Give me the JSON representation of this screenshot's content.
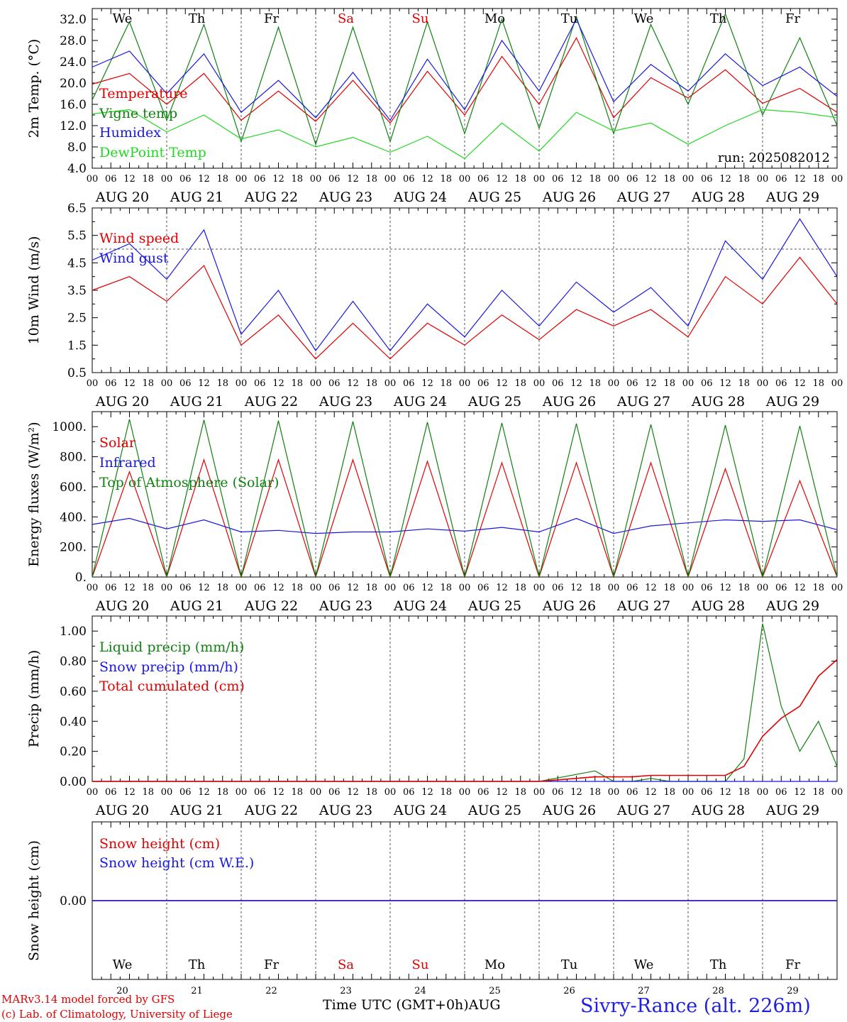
{
  "run_label": "run: 2025082012",
  "credit_line1": "MARv3.14 model forced by GFS",
  "credit_line2": "(c) Lab. of Climatology, University of Liege",
  "x_title": "Time UTC (GMT+0h)",
  "month_label": "AUG",
  "location": "Sivry-Rance (alt. 226m)",
  "day_names": [
    "We",
    "Th",
    "Fr",
    "Sa",
    "Su",
    "Mo",
    "Tu",
    "We",
    "Th",
    "Fr"
  ],
  "weekend_days": [
    3,
    4
  ],
  "date_labels": [
    "AUG 20",
    "AUG 21",
    "AUG 22",
    "AUG 23",
    "AUG 24",
    "AUG 25",
    "AUG 26",
    "AUG 27",
    "AUG 28",
    "AUG 29"
  ],
  "day_numbers": [
    "20",
    "21",
    "22",
    "23",
    "24",
    "25",
    "26",
    "27",
    "28",
    "29"
  ],
  "hour_ticks": [
    "00",
    "06",
    "12",
    "18"
  ],
  "colors": {
    "red": "#e00000",
    "blue": "#1818e0",
    "green": "#108010",
    "lightgreen": "#20d820",
    "weekend": "#e00000",
    "location": "#2020e0"
  },
  "chart_data": [
    {
      "id": "temp",
      "type": "line",
      "ylabel": "2m Temp. (°C)",
      "ylim": [
        4,
        34
      ],
      "yticks": [
        "4.0",
        "8.0",
        "12.0",
        "16.0",
        "20.0",
        "24.0",
        "28.0",
        "32.0"
      ],
      "legend_position": "left",
      "x_hours": [
        0,
        12,
        24,
        36,
        48,
        60,
        72,
        84,
        96,
        108,
        120,
        132,
        144,
        156,
        168,
        180,
        192,
        204,
        216,
        228,
        240
      ],
      "series": [
        {
          "name": "Temperature",
          "color": "red",
          "values": [
            19.8,
            21.8,
            16.0,
            21.8,
            13.0,
            18.5,
            12.8,
            20.5,
            12.5,
            22.2,
            14.0,
            25.0,
            16.0,
            28.5,
            13.5,
            21.0,
            17.2,
            22.5,
            16.2,
            19.0,
            14.5
          ]
        },
        {
          "name": "Vigne temp",
          "color": "green",
          "values": [
            16.8,
            31.5,
            13.0,
            31.0,
            9.0,
            30.5,
            8.5,
            30.5,
            9.0,
            31.5,
            10.5,
            32.0,
            11.5,
            32.5,
            10.5,
            31.0,
            16.0,
            33.0,
            14.0,
            28.5,
            12.0
          ]
        },
        {
          "name": "Humidex",
          "color": "blue",
          "values": [
            23.0,
            26.0,
            18.0,
            25.5,
            14.5,
            20.5,
            13.5,
            22.0,
            13.0,
            24.5,
            15.0,
            28.0,
            18.5,
            32.0,
            16.5,
            23.5,
            18.5,
            25.5,
            19.5,
            23.0,
            17.5
          ]
        },
        {
          "name": "DewPoint Temp",
          "color": "lightgreen",
          "values": [
            14.2,
            15.0,
            10.8,
            14.0,
            9.5,
            11.2,
            8.0,
            9.8,
            7.0,
            10.0,
            5.8,
            12.5,
            7.2,
            14.5,
            11.0,
            12.5,
            8.5,
            12.0,
            15.0,
            14.5,
            13.5
          ]
        }
      ]
    },
    {
      "id": "wind",
      "type": "line",
      "ylabel": "10m Wind (m/s)",
      "ylim": [
        0.5,
        6.5
      ],
      "yticks": [
        "0.5",
        "1.5",
        "2.5",
        "3.5",
        "4.5",
        "5.5",
        "6.5"
      ],
      "reference_line": 5.0,
      "legend_position": "left",
      "x_hours": [
        0,
        12,
        24,
        36,
        48,
        60,
        72,
        84,
        96,
        108,
        120,
        132,
        144,
        156,
        168,
        180,
        192,
        204,
        216,
        228,
        240
      ],
      "series": [
        {
          "name": "Wind speed",
          "color": "red",
          "values": [
            3.5,
            4.0,
            3.1,
            4.4,
            1.5,
            2.6,
            1.0,
            2.3,
            1.0,
            2.3,
            1.5,
            2.6,
            1.7,
            2.8,
            2.2,
            2.8,
            1.8,
            4.0,
            3.0,
            4.7,
            3.0
          ]
        },
        {
          "name": "Wind gust",
          "color": "blue",
          "values": [
            4.6,
            5.2,
            3.9,
            5.7,
            1.9,
            3.5,
            1.3,
            3.1,
            1.3,
            3.0,
            1.8,
            3.5,
            2.2,
            3.8,
            2.7,
            3.6,
            2.2,
            5.3,
            3.9,
            6.1,
            4.0
          ]
        }
      ]
    },
    {
      "id": "energy",
      "type": "line",
      "ylabel": "Energy fluxes (W/m²)",
      "ylim": [
        0,
        1100
      ],
      "yticks": [
        "0.",
        "200.",
        "400.",
        "600.",
        "800.",
        "1000."
      ],
      "legend_position": "left",
      "x_hours": [
        0,
        12,
        24,
        36,
        48,
        60,
        72,
        84,
        96,
        108,
        120,
        132,
        144,
        156,
        168,
        180,
        192,
        204,
        216,
        228,
        240
      ],
      "series": [
        {
          "name": "Solar",
          "color": "red",
          "values": [
            0,
            700,
            0,
            780,
            0,
            780,
            0,
            780,
            0,
            770,
            0,
            760,
            0,
            760,
            0,
            760,
            0,
            720,
            0,
            640,
            0
          ]
        },
        {
          "name": "Infrared",
          "color": "blue",
          "values": [
            350,
            390,
            320,
            380,
            300,
            310,
            290,
            300,
            300,
            320,
            305,
            330,
            300,
            390,
            290,
            340,
            360,
            380,
            370,
            380,
            315
          ]
        },
        {
          "name": "Top of Atmosphere (Solar)",
          "color": "green",
          "values": [
            0,
            1050,
            0,
            1045,
            0,
            1040,
            0,
            1035,
            0,
            1030,
            0,
            1025,
            0,
            1020,
            0,
            1015,
            0,
            1010,
            0,
            1005,
            0
          ]
        }
      ]
    },
    {
      "id": "precip",
      "type": "line",
      "ylabel": "Precip (mm/h)",
      "ylim": [
        0,
        1.1
      ],
      "yticks": [
        "0.00",
        "0.20",
        "0.40",
        "0.60",
        "0.80",
        "1.00"
      ],
      "legend_position": "left",
      "x_hours": [
        0,
        36,
        72,
        108,
        144,
        162,
        168,
        174,
        180,
        186,
        192,
        204,
        210,
        216,
        222,
        228,
        234,
        240
      ],
      "series": [
        {
          "name": "Liquid precip (mm/h)",
          "color": "green",
          "values": [
            0,
            0,
            0,
            0,
            0,
            0.07,
            0,
            0,
            0.02,
            0,
            0,
            0,
            0.15,
            1.05,
            0.5,
            0.2,
            0.4,
            0.1
          ]
        },
        {
          "name": "Snow precip (mm/h)",
          "color": "blue",
          "values": [
            0,
            0,
            0,
            0,
            0,
            0,
            0,
            0,
            0,
            0,
            0,
            0,
            0,
            0,
            0,
            0,
            0,
            0
          ]
        },
        {
          "name": "Total cumulated (cm)",
          "color": "red",
          "values": [
            0,
            0,
            0,
            0,
            0,
            0.03,
            0.03,
            0.03,
            0.04,
            0.04,
            0.04,
            0.04,
            0.1,
            0.3,
            0.42,
            0.5,
            0.7,
            0.81
          ]
        }
      ]
    },
    {
      "id": "snow",
      "type": "line",
      "ylabel": "Snow height (cm)",
      "ylim": [
        -1,
        1
      ],
      "yticks": [
        "0.00"
      ],
      "legend_position": "left",
      "x_hours": [
        0,
        240
      ],
      "series": [
        {
          "name": "Snow height (cm)",
          "color": "red",
          "values": [
            0,
            0
          ]
        },
        {
          "name": "Snow height (cm W.E.)",
          "color": "blue",
          "values": [
            0,
            0
          ]
        }
      ]
    }
  ]
}
